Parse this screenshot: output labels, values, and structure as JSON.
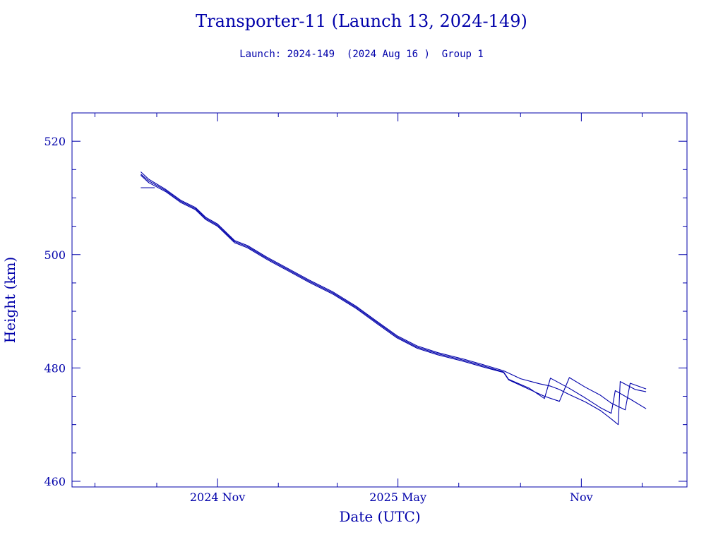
{
  "chart_data": {
    "type": "line",
    "title": "Transporter-11 (Launch 13, 2024-149)",
    "subtitle": "Launch: 2024-149  (2024 Aug 16 )  Group 1",
    "xlabel": "Date (UTC)",
    "ylabel": "Height (km)",
    "xlim": [
      "2024-06-08",
      "2026-02-15"
    ],
    "ylim": [
      459,
      525
    ],
    "x_ticks": [
      {
        "date": "2024-11-01",
        "label": "2024 Nov"
      },
      {
        "date": "2025-05-01",
        "label": "2025 May"
      },
      {
        "date": "2025-11-01",
        "label": "Nov"
      }
    ],
    "x_minor_ticks": [
      "2024-07-01",
      "2024-09-01",
      "2025-01-01",
      "2025-03-01",
      "2025-07-01",
      "2025-09-01",
      "2026-01-01"
    ],
    "y_ticks": [
      460,
      480,
      500,
      520
    ],
    "y_minor_step": 5,
    "grid": false,
    "line_color": "#0000aa",
    "series": [
      {
        "values": [
          [
            "2024-08-16",
            514.6
          ],
          [
            "2024-08-24",
            513.3
          ],
          [
            "2024-09-10",
            511.5
          ],
          [
            "2024-09-25",
            509.6
          ],
          [
            "2024-10-10",
            508.3
          ],
          [
            "2024-10-20",
            506.6
          ],
          [
            "2024-11-01",
            505.4
          ],
          [
            "2024-11-18",
            502.5
          ],
          [
            "2024-12-01",
            501.6
          ],
          [
            "2024-12-20",
            499.6
          ],
          [
            "2025-01-10",
            497.6
          ],
          [
            "2025-02-01",
            495.5
          ],
          [
            "2025-02-25",
            493.4
          ],
          [
            "2025-03-20",
            490.9
          ],
          [
            "2025-04-10",
            488.2
          ],
          [
            "2025-04-30",
            485.7
          ],
          [
            "2025-05-20",
            483.9
          ],
          [
            "2025-06-10",
            482.7
          ],
          [
            "2025-07-05",
            481.6
          ],
          [
            "2025-07-25",
            480.6
          ],
          [
            "2025-08-15",
            479.5
          ],
          [
            "2025-09-01",
            478.1
          ],
          [
            "2025-09-20",
            477.2
          ],
          [
            "2025-10-01",
            476.8
          ],
          [
            "2025-10-10",
            476.2
          ],
          [
            "2025-10-20",
            475.3
          ],
          [
            "2025-11-05",
            474.0
          ],
          [
            "2025-11-20",
            472.5
          ],
          [
            "2025-12-01",
            471.0
          ],
          [
            "2025-12-08",
            470.0
          ],
          [
            "2025-12-10",
            477.6
          ],
          [
            "2025-12-25",
            476.2
          ],
          [
            "2026-01-05",
            475.8
          ]
        ]
      },
      {
        "values": [
          [
            "2024-08-16",
            514.2
          ],
          [
            "2024-08-24",
            513.0
          ],
          [
            "2024-09-10",
            511.3
          ],
          [
            "2024-09-25",
            509.4
          ],
          [
            "2024-10-10",
            508.1
          ],
          [
            "2024-10-20",
            506.4
          ],
          [
            "2024-11-01",
            505.2
          ],
          [
            "2024-11-18",
            502.3
          ],
          [
            "2024-12-01",
            501.4
          ],
          [
            "2024-12-20",
            499.4
          ],
          [
            "2025-01-10",
            497.4
          ],
          [
            "2025-02-01",
            495.3
          ],
          [
            "2025-02-25",
            493.2
          ],
          [
            "2025-03-20",
            490.7
          ],
          [
            "2025-04-10",
            488.0
          ],
          [
            "2025-04-30",
            485.5
          ],
          [
            "2025-05-20",
            483.7
          ],
          [
            "2025-06-10",
            482.5
          ],
          [
            "2025-07-05",
            481.4
          ],
          [
            "2025-07-25",
            480.4
          ],
          [
            "2025-08-15",
            479.3
          ],
          [
            "2025-08-20",
            478.0
          ],
          [
            "2025-09-10",
            476.4
          ],
          [
            "2025-09-25",
            474.6
          ],
          [
            "2025-10-01",
            478.2
          ],
          [
            "2025-10-20",
            476.4
          ],
          [
            "2025-11-05",
            474.7
          ],
          [
            "2025-11-20",
            473.0
          ],
          [
            "2025-12-01",
            472.0
          ],
          [
            "2025-12-05",
            476.0
          ],
          [
            "2025-12-20",
            474.5
          ],
          [
            "2026-01-05",
            472.8
          ]
        ]
      },
      {
        "values": [
          [
            "2024-08-16",
            514.0
          ],
          [
            "2024-08-24",
            512.7
          ],
          [
            "2024-09-10",
            511.1
          ],
          [
            "2024-09-25",
            509.2
          ],
          [
            "2024-10-10",
            507.9
          ],
          [
            "2024-10-20",
            506.2
          ],
          [
            "2024-11-01",
            505.0
          ],
          [
            "2024-11-18",
            502.1
          ],
          [
            "2024-12-01",
            501.2
          ],
          [
            "2024-12-20",
            499.2
          ],
          [
            "2025-01-10",
            497.2
          ],
          [
            "2025-02-01",
            495.1
          ],
          [
            "2025-02-25",
            493.0
          ],
          [
            "2025-03-20",
            490.5
          ],
          [
            "2025-04-10",
            487.8
          ],
          [
            "2025-04-30",
            485.3
          ],
          [
            "2025-05-20",
            483.5
          ],
          [
            "2025-06-10",
            482.3
          ],
          [
            "2025-07-05",
            481.2
          ],
          [
            "2025-07-25",
            480.2
          ],
          [
            "2025-08-15",
            479.2
          ],
          [
            "2025-08-20",
            477.9
          ],
          [
            "2025-09-10",
            476.2
          ],
          [
            "2025-09-25",
            475.0
          ],
          [
            "2025-10-10",
            474.1
          ],
          [
            "2025-10-20",
            478.3
          ],
          [
            "2025-11-05",
            476.6
          ],
          [
            "2025-11-20",
            475.2
          ],
          [
            "2025-12-01",
            473.8
          ],
          [
            "2025-12-15",
            472.6
          ],
          [
            "2025-12-20",
            477.3
          ],
          [
            "2026-01-05",
            476.3
          ]
        ]
      },
      {
        "values": [
          [
            "2024-08-16",
            511.8
          ],
          [
            "2024-08-30",
            511.8
          ]
        ]
      }
    ]
  }
}
